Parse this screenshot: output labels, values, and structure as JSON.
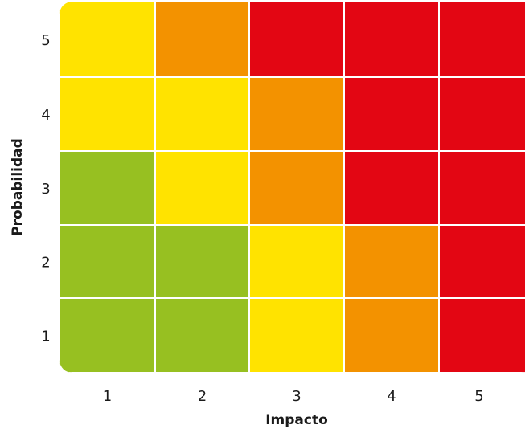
{
  "chart_data": {
    "type": "heatmap",
    "xlabel": "Impacto",
    "ylabel": "Probabilidad",
    "x_categories": [
      "1",
      "2",
      "3",
      "4",
      "5"
    ],
    "y_categories": [
      "1",
      "2",
      "3",
      "4",
      "5"
    ],
    "levels": {
      "green": "#97c021",
      "yellow": "#ffe300",
      "orange": "#f39200",
      "red": "#e30613"
    },
    "grid": [
      {
        "probabilidad": "5",
        "cells": [
          "yellow",
          "orange",
          "red",
          "red",
          "red"
        ]
      },
      {
        "probabilidad": "4",
        "cells": [
          "yellow",
          "yellow",
          "orange",
          "red",
          "red"
        ]
      },
      {
        "probabilidad": "3",
        "cells": [
          "green",
          "yellow",
          "orange",
          "red",
          "red"
        ]
      },
      {
        "probabilidad": "2",
        "cells": [
          "green",
          "green",
          "yellow",
          "orange",
          "red"
        ]
      },
      {
        "probabilidad": "1",
        "cells": [
          "green",
          "green",
          "yellow",
          "orange",
          "red"
        ]
      }
    ]
  }
}
